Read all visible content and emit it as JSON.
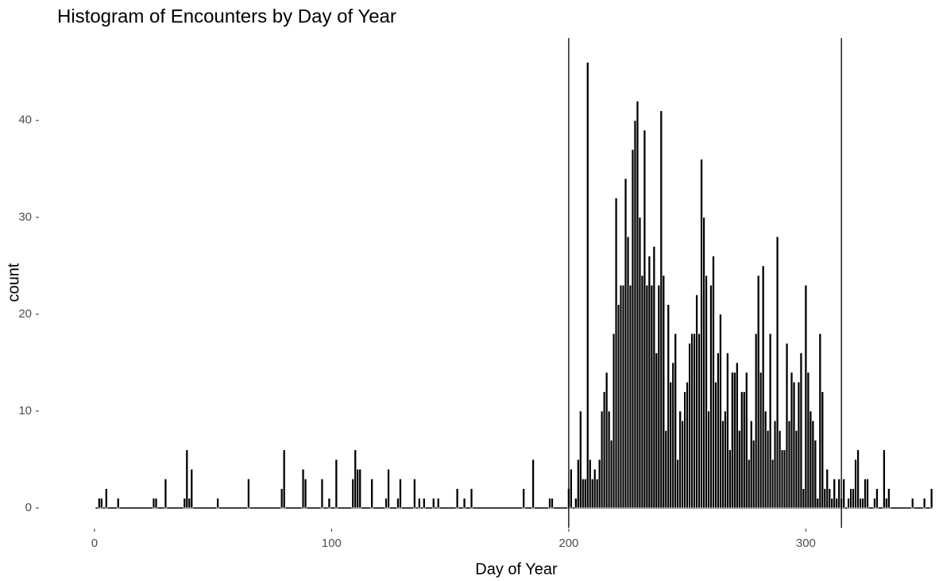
{
  "chart_data": {
    "type": "histogram",
    "title": "Histogram of Encounters by Day of Year",
    "x_label": "Day of Year",
    "y_label": "count",
    "bins": [
      0.5,
      1.5,
      2.5,
      3.5,
      4.5,
      5.5,
      6.5,
      7.5,
      8.5,
      9.5,
      10.5,
      11.5,
      12.5,
      13.5,
      14.5,
      15.5,
      16.5,
      17.5,
      18.5,
      19.5,
      20.5,
      21.5,
      22.5,
      23.5,
      24.5,
      25.5,
      26.5,
      27.5,
      28.5,
      29.5,
      30.5,
      31.5,
      32.5,
      33.5,
      34.5,
      35.5,
      36.5,
      37.5,
      38.5,
      39.5,
      40.5,
      41.5,
      42.5,
      43.5,
      44.5,
      45.5,
      46.5,
      47.5,
      48.5,
      49.5,
      50.5,
      51.5,
      52.5,
      53.5,
      54.5,
      55.5,
      56.5,
      57.5,
      58.5,
      59.5,
      60.5,
      61.5,
      62.5,
      63.5,
      64.5,
      65.5,
      66.5,
      67.5,
      68.5,
      69.5,
      70.5,
      71.5,
      72.5,
      73.5,
      74.5,
      75.5,
      76.5,
      77.5,
      78.5,
      79.5,
      80.5,
      81.5,
      82.5,
      83.5,
      84.5,
      85.5,
      86.5,
      87.5,
      88.5,
      89.5,
      90.5,
      91.5,
      92.5,
      93.5,
      94.5,
      95.5,
      96.5,
      97.5,
      98.5,
      99.5,
      100.5,
      101.5,
      102.5,
      103.5,
      104.5,
      105.5,
      106.5,
      107.5,
      108.5,
      109.5,
      110.5,
      111.5,
      112.5,
      113.5,
      114.5,
      115.5,
      116.5,
      117.5,
      118.5,
      119.5,
      120.5,
      121.5,
      122.5,
      123.5,
      124.5,
      125.5,
      126.5,
      127.5,
      128.5,
      129.5,
      130.5,
      131.5,
      132.5,
      133.5,
      134.5,
      135.5,
      136.5,
      137.5,
      138.5,
      139.5,
      140.5,
      141.5,
      142.5,
      143.5,
      144.5,
      145.5,
      146.5,
      147.5,
      148.5,
      149.5,
      150.5,
      151.5,
      152.5,
      153.5,
      154.5,
      155.5,
      156.5,
      157.5,
      158.5,
      159.5,
      160.5,
      161.5,
      162.5,
      163.5,
      164.5,
      165.5,
      166.5,
      167.5,
      168.5,
      169.5,
      170.5,
      171.5,
      172.5,
      173.5,
      174.5,
      175.5,
      176.5,
      177.5,
      178.5,
      179.5,
      180.5,
      181.5,
      182.5,
      183.5,
      184.5,
      185.5,
      186.5,
      187.5,
      188.5,
      189.5,
      190.5,
      191.5,
      192.5,
      193.5,
      194.5,
      195.5,
      196.5,
      197.5,
      198.5,
      199.5,
      200.5,
      201.5,
      202.5,
      203.5,
      204.5,
      205.5,
      206.5,
      207.5,
      208.5,
      209.5,
      210.5,
      211.5,
      212.5,
      213.5,
      214.5,
      215.5,
      216.5,
      217.5,
      218.5,
      219.5,
      220.5,
      221.5,
      222.5,
      223.5,
      224.5,
      225.5,
      226.5,
      227.5,
      228.5,
      229.5,
      230.5,
      231.5,
      232.5,
      233.5,
      234.5,
      235.5,
      236.5,
      237.5,
      238.5,
      239.5,
      240.5,
      241.5,
      242.5,
      243.5,
      244.5,
      245.5,
      246.5,
      247.5,
      248.5,
      249.5,
      250.5,
      251.5,
      252.5,
      253.5,
      254.5,
      255.5,
      256.5,
      257.5,
      258.5,
      259.5,
      260.5,
      261.5,
      262.5,
      263.5,
      264.5,
      265.5,
      266.5,
      267.5,
      268.5,
      269.5,
      270.5,
      271.5,
      272.5,
      273.5,
      274.5,
      275.5,
      276.5,
      277.5,
      278.5,
      279.5,
      280.5,
      281.5,
      282.5,
      283.5,
      284.5,
      285.5,
      286.5,
      287.5,
      288.5,
      289.5,
      290.5,
      291.5,
      292.5,
      293.5,
      294.5,
      295.5,
      296.5,
      297.5,
      298.5,
      299.5,
      300.5,
      301.5,
      302.5,
      303.5,
      304.5,
      305.5,
      306.5,
      307.5,
      308.5,
      309.5,
      310.5,
      311.5,
      312.5,
      313.5,
      314.5,
      315.5,
      316.5,
      317.5,
      318.5,
      319.5,
      320.5,
      321.5,
      322.5,
      323.5,
      324.5,
      325.5,
      326.5,
      327.5,
      328.5,
      329.5,
      330.5,
      331.5,
      332.5,
      333.5,
      334.5,
      335.5,
      336.5,
      337.5,
      338.5,
      339.5,
      340.5,
      341.5,
      342.5,
      343.5,
      344.5,
      345.5,
      346.5,
      347.5,
      348.5,
      349.5,
      350.5,
      351.5,
      352.5,
      353.5
    ],
    "values": [
      0,
      1,
      1,
      0,
      2,
      0,
      0,
      0,
      0,
      1,
      0,
      0,
      0,
      0,
      0,
      0,
      0,
      0,
      0,
      0,
      0,
      0,
      0,
      0,
      1,
      1,
      0,
      0,
      0,
      3,
      0,
      0,
      0,
      0,
      0,
      0,
      0,
      1,
      6,
      1,
      4,
      0,
      0,
      0,
      0,
      0,
      0,
      0,
      0,
      0,
      0,
      1,
      0,
      0,
      0,
      0,
      0,
      0,
      0,
      0,
      0,
      0,
      0,
      0,
      3,
      0,
      0,
      0,
      0,
      0,
      0,
      0,
      0,
      0,
      0,
      0,
      0,
      0,
      2,
      6,
      0,
      0,
      0,
      0,
      0,
      0,
      0,
      4,
      3,
      0,
      0,
      0,
      0,
      0,
      0,
      3,
      0,
      0,
      1,
      0,
      0,
      5,
      0,
      0,
      0,
      0,
      0,
      0,
      3,
      6,
      4,
      4,
      0,
      0,
      0,
      0,
      3,
      0,
      0,
      0,
      0,
      0,
      1,
      4,
      0,
      0,
      0,
      1,
      3,
      0,
      0,
      0,
      0,
      0,
      3,
      0,
      1,
      0,
      1,
      0,
      0,
      0,
      1,
      0,
      1,
      0,
      0,
      0,
      0,
      0,
      0,
      0,
      2,
      0,
      0,
      1,
      0,
      0,
      2,
      0,
      0,
      0,
      0,
      0,
      0,
      0,
      0,
      0,
      0,
      0,
      0,
      0,
      0,
      0,
      0,
      0,
      0,
      0,
      0,
      0,
      2,
      0,
      0,
      0,
      5,
      0,
      0,
      0,
      0,
      0,
      0,
      1,
      1,
      0,
      0,
      0,
      0,
      0,
      0,
      2,
      4,
      0,
      1,
      5,
      10,
      3,
      3,
      46,
      5,
      3,
      4,
      3,
      5,
      10,
      12,
      14,
      10,
      7,
      18,
      32,
      21,
      23,
      23,
      34,
      28,
      23,
      37,
      40,
      42,
      30,
      24,
      39,
      23,
      26,
      23,
      27,
      16,
      23,
      41,
      24,
      8,
      21,
      13,
      15,
      18,
      5,
      10,
      9,
      12,
      13,
      17,
      18,
      18,
      22,
      18,
      36,
      30,
      24,
      10,
      23,
      26,
      13,
      16,
      20,
      9,
      10,
      16,
      6,
      14,
      14,
      15,
      8,
      12,
      12,
      14,
      5,
      9,
      7,
      18,
      24,
      14,
      25,
      10,
      8,
      18,
      5,
      9,
      28,
      8,
      6,
      6,
      17,
      9,
      14,
      13,
      8,
      13,
      16,
      2,
      23,
      14,
      10,
      9,
      7,
      1,
      18,
      12,
      2,
      4,
      2,
      1,
      3,
      1,
      3,
      1,
      3,
      0,
      1,
      2,
      2,
      5,
      6,
      1,
      1,
      3,
      3,
      0,
      0,
      1,
      2,
      0,
      0,
      6,
      1,
      2,
      0,
      0,
      0,
      0,
      0,
      0,
      0,
      0,
      0,
      1,
      0,
      0,
      0,
      0,
      1,
      0,
      0,
      2
    ],
    "color": "#000000",
    "vlines": [
      200,
      315
    ],
    "xlim": [
      -14.7,
      353.8
    ],
    "ylim": [
      -2.05,
      48.5
    ],
    "xticks": [
      0,
      100,
      200,
      300
    ],
    "yticks": [
      0,
      10,
      20,
      30,
      40
    ],
    "grid": false
  }
}
